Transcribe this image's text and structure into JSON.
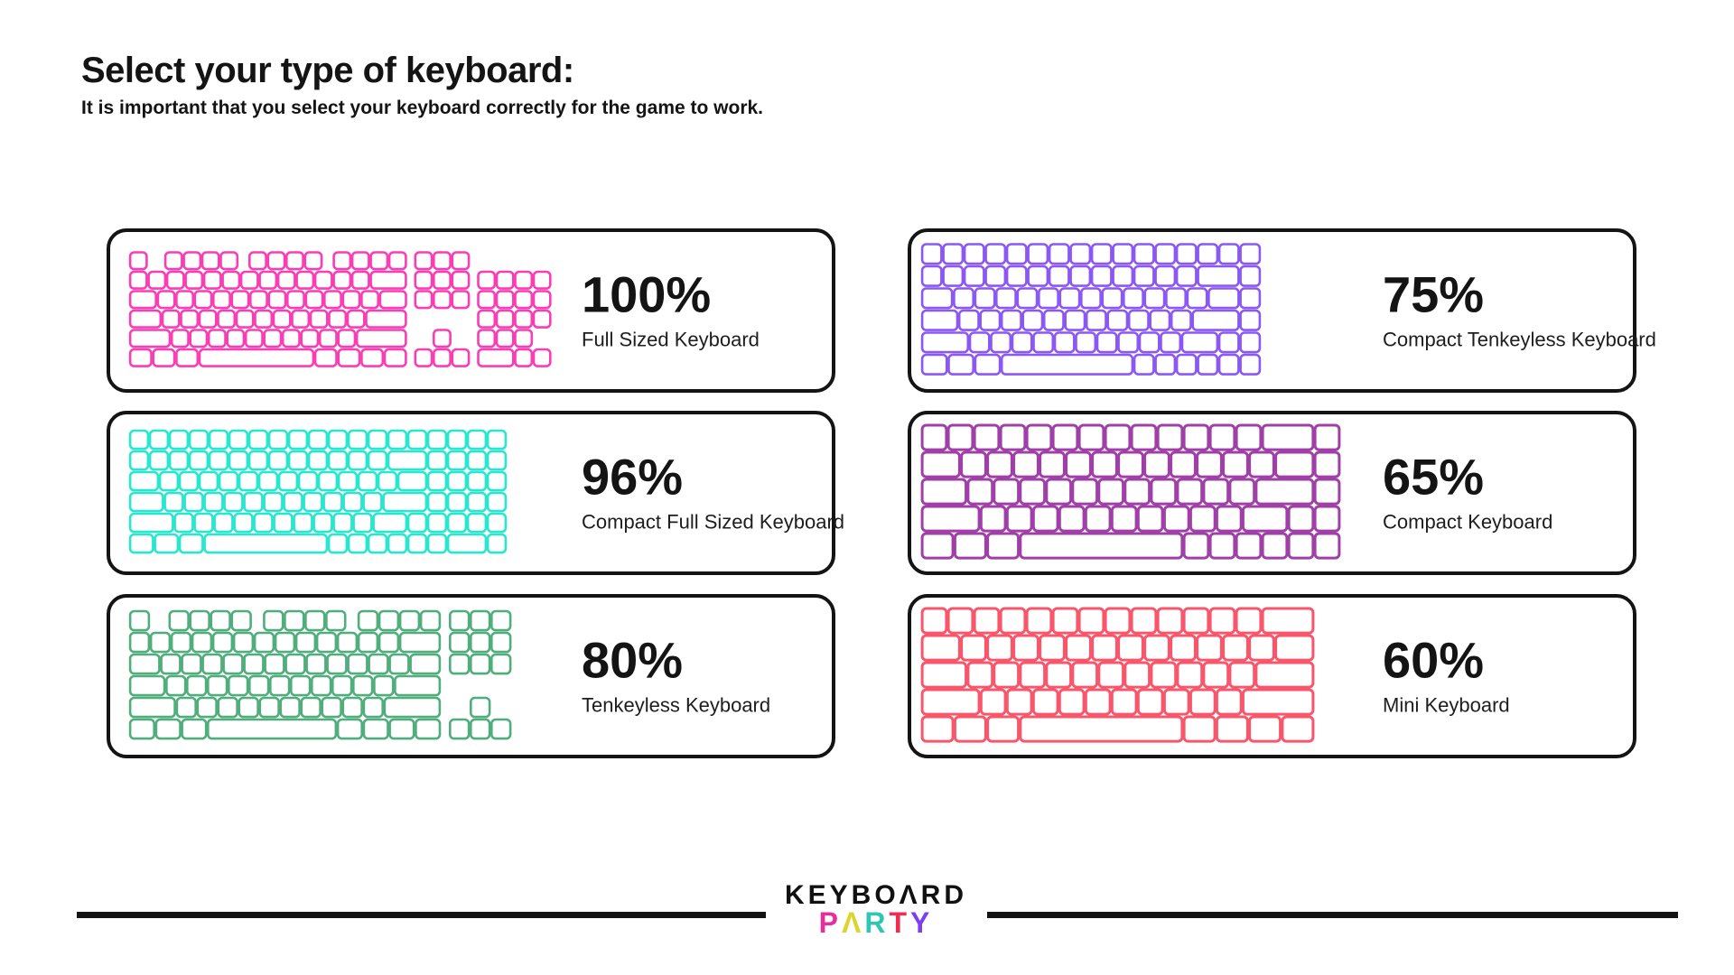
{
  "page": {
    "background": "#ffffff",
    "text_color": "#141414"
  },
  "header": {
    "title": "Select your type of keyboard:",
    "subtitle": "It is important that you select your keyboard correctly for the game to work."
  },
  "cards": [
    {
      "id": "full-sized",
      "percent": "100%",
      "label": "Full Sized Keyboard",
      "color": "#fb3db5",
      "keyboard": {
        "unit": 20.5,
        "stroke": 2.6,
        "rows": [
          [
            1,
            -0.9,
            1,
            1,
            1,
            1,
            -0.55,
            1,
            1,
            1,
            1,
            -0.55,
            1,
            1,
            1,
            1,
            -0.4,
            1,
            1,
            1
          ],
          [
            1,
            1,
            1,
            1,
            1,
            1,
            1,
            1,
            1,
            1,
            1,
            1,
            1,
            2,
            -0.4,
            1,
            1,
            1,
            -0.4,
            1,
            1,
            1,
            1
          ],
          [
            1.5,
            1,
            1,
            1,
            1,
            1,
            1,
            1,
            1,
            1,
            1,
            1,
            1,
            1.5,
            -0.4,
            1,
            1,
            1,
            -0.4,
            1,
            1,
            1,
            1
          ],
          [
            1.75,
            1,
            1,
            1,
            1,
            1,
            1,
            1,
            1,
            1,
            1,
            1,
            2.25,
            -3.8,
            1,
            1,
            1,
            1
          ],
          [
            2.25,
            1,
            1,
            1,
            1,
            1,
            1,
            1,
            1,
            1,
            1,
            2.75,
            -1.4,
            1,
            -1.4,
            1,
            1,
            1
          ],
          [
            1.25,
            1.25,
            1.25,
            6.25,
            1.25,
            1.25,
            1.25,
            1.25,
            -0.4,
            1,
            1,
            1,
            -0.4,
            2,
            1,
            1
          ]
        ]
      }
    },
    {
      "id": "compact-tenkeyless",
      "percent": "75%",
      "label": "Compact Tenkeyless Keyboard",
      "color": "#8b57f5",
      "keyboard": {
        "unit": 23.5,
        "stroke": 2.6,
        "rows": [
          [
            1,
            1,
            1,
            1,
            1,
            1,
            1,
            1,
            1,
            1,
            1,
            1,
            1,
            1,
            1,
            1
          ],
          [
            1,
            1,
            1,
            1,
            1,
            1,
            1,
            1,
            1,
            1,
            1,
            1,
            1,
            2,
            1
          ],
          [
            1.5,
            1,
            1,
            1,
            1,
            1,
            1,
            1,
            1,
            1,
            1,
            1,
            1,
            1.5,
            1
          ],
          [
            1.75,
            1,
            1,
            1,
            1,
            1,
            1,
            1,
            1,
            1,
            1,
            1,
            2.25,
            1
          ],
          [
            2.25,
            1,
            1,
            1,
            1,
            1,
            1,
            1,
            1,
            1,
            1,
            1.75,
            1,
            1
          ],
          [
            1.25,
            1.25,
            1.25,
            6.25,
            1,
            1,
            1,
            1,
            1,
            1
          ]
        ]
      }
    },
    {
      "id": "compact-full-sized",
      "percent": "96%",
      "label": "Compact Full Sized Keyboard",
      "color": "#27e7cf",
      "keyboard": {
        "unit": 22,
        "stroke": 2.6,
        "rows": [
          [
            1,
            1,
            1,
            1,
            1,
            1,
            1,
            1,
            1,
            1,
            1,
            1,
            1,
            1,
            1,
            1,
            1,
            1,
            1
          ],
          [
            1,
            1,
            1,
            1,
            1,
            1,
            1,
            1,
            1,
            1,
            1,
            1,
            1,
            2,
            1,
            1,
            1,
            1
          ],
          [
            1.5,
            1,
            1,
            1,
            1,
            1,
            1,
            1,
            1,
            1,
            1,
            1,
            1,
            1.5,
            1,
            1,
            1,
            1
          ],
          [
            1.75,
            1,
            1,
            1,
            1,
            1,
            1,
            1,
            1,
            1,
            1,
            1,
            2.25,
            1,
            1,
            1,
            1
          ],
          [
            2.25,
            1,
            1,
            1,
            1,
            1,
            1,
            1,
            1,
            1,
            1,
            1.75,
            1,
            1,
            1,
            1,
            1
          ],
          [
            1.25,
            1.25,
            1.25,
            6.25,
            1,
            1,
            1,
            1,
            1,
            1,
            2,
            1
          ]
        ]
      }
    },
    {
      "id": "compact",
      "percent": "65%",
      "label": "Compact Keyboard",
      "color": "#a03fa8",
      "keyboard": {
        "unit": 29,
        "stroke": 3,
        "rows": [
          [
            1,
            1,
            1,
            1,
            1,
            1,
            1,
            1,
            1,
            1,
            1,
            1,
            1,
            2,
            1
          ],
          [
            1.5,
            1,
            1,
            1,
            1,
            1,
            1,
            1,
            1,
            1,
            1,
            1,
            1,
            1.5,
            1
          ],
          [
            1.75,
            1,
            1,
            1,
            1,
            1,
            1,
            1,
            1,
            1,
            1,
            1,
            2.25,
            1
          ],
          [
            2.25,
            1,
            1,
            1,
            1,
            1,
            1,
            1,
            1,
            1,
            1,
            1.75,
            1,
            1
          ],
          [
            1.25,
            1.25,
            1.25,
            6.25,
            1,
            1,
            1,
            1,
            1,
            1
          ]
        ]
      }
    },
    {
      "id": "tenkeyless",
      "percent": "80%",
      "label": "Tenkeyless Keyboard",
      "color": "#4fae7c",
      "keyboard": {
        "unit": 23,
        "stroke": 2.6,
        "rows": [
          [
            1,
            -0.9,
            1,
            1,
            1,
            1,
            -0.55,
            1,
            1,
            1,
            1,
            -0.55,
            1,
            1,
            1,
            1,
            -0.4,
            1,
            1,
            1
          ],
          [
            1,
            1,
            1,
            1,
            1,
            1,
            1,
            1,
            1,
            1,
            1,
            1,
            1,
            2,
            -0.4,
            1,
            1,
            1
          ],
          [
            1.5,
            1,
            1,
            1,
            1,
            1,
            1,
            1,
            1,
            1,
            1,
            1,
            1,
            1.5,
            -0.4,
            1,
            1,
            1
          ],
          [
            1.75,
            1,
            1,
            1,
            1,
            1,
            1,
            1,
            1,
            1,
            1,
            1,
            2.25
          ],
          [
            2.25,
            1,
            1,
            1,
            1,
            1,
            1,
            1,
            1,
            1,
            1,
            2.75,
            -1.4,
            1
          ],
          [
            1.25,
            1.25,
            1.25,
            6.25,
            1.25,
            1.25,
            1.25,
            1.25,
            -0.4,
            1,
            1,
            1
          ]
        ]
      }
    },
    {
      "id": "mini",
      "percent": "60%",
      "label": "Mini Keyboard",
      "color": "#f9566c",
      "keyboard": {
        "unit": 29,
        "stroke": 3,
        "rows": [
          [
            1,
            1,
            1,
            1,
            1,
            1,
            1,
            1,
            1,
            1,
            1,
            1,
            1,
            2
          ],
          [
            1.5,
            1,
            1,
            1,
            1,
            1,
            1,
            1,
            1,
            1,
            1,
            1,
            1,
            1.5
          ],
          [
            1.75,
            1,
            1,
            1,
            1,
            1,
            1,
            1,
            1,
            1,
            1,
            1,
            2.25
          ],
          [
            2.25,
            1,
            1,
            1,
            1,
            1,
            1,
            1,
            1,
            1,
            1,
            2.75
          ],
          [
            1.25,
            1.25,
            1.25,
            6.25,
            1.25,
            1.25,
            1.25,
            1.25
          ]
        ]
      }
    }
  ],
  "footer": {
    "brand_line1": "KEYBOΛRD",
    "brand_line2": [
      {
        "ch": "P",
        "color": "#e62e9c"
      },
      {
        "ch": "Λ",
        "color": "#ddd42e"
      },
      {
        "ch": "R",
        "color": "#2fc7b2"
      },
      {
        "ch": "T",
        "color": "#ee2d51"
      },
      {
        "ch": "Y",
        "color": "#7a3ff0"
      }
    ]
  }
}
